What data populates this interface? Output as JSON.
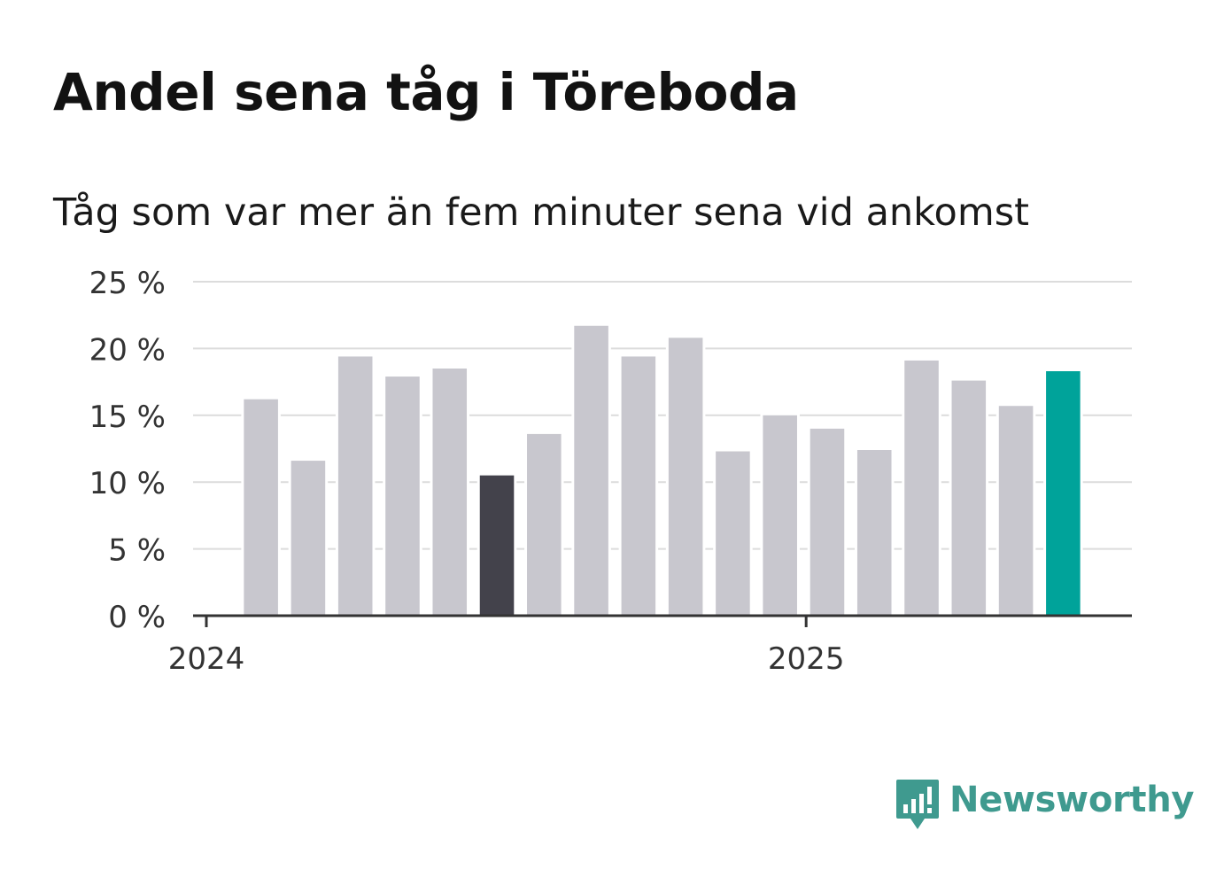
{
  "title": "Andel sena tåg i Töreboda",
  "subtitle": "Tåg som var mer än fem minuter sena vid ankomst",
  "logo": {
    "text": "Newsworthy",
    "icon": "newsworthy-bar-chart-speech-bubble-icon",
    "color": "#3f9a8f"
  },
  "chart_data": {
    "type": "bar",
    "y_ticks": [
      "0 %",
      "5 %",
      "10 %",
      "15 %",
      "20 %",
      "25 %"
    ],
    "ylim": [
      0,
      25
    ],
    "y_unit": "%",
    "x_tick_labels": [
      {
        "label": "2024",
        "at_index": 0
      },
      {
        "label": "2025",
        "at_index": 12
      }
    ],
    "series": [
      {
        "values": [
          16.3,
          11.7,
          19.5,
          18.0,
          18.6,
          10.6,
          13.7,
          21.8,
          19.5,
          20.9,
          12.4,
          15.1,
          14.1,
          12.5,
          19.2,
          17.7,
          15.8,
          18.4
        ]
      }
    ],
    "highlight": {
      "index": 5,
      "color": "#43424b"
    },
    "latest": {
      "index": 17,
      "color": "#00a39a"
    },
    "bar_color": "#c8c7ce",
    "grid": true,
    "legend": "none"
  }
}
